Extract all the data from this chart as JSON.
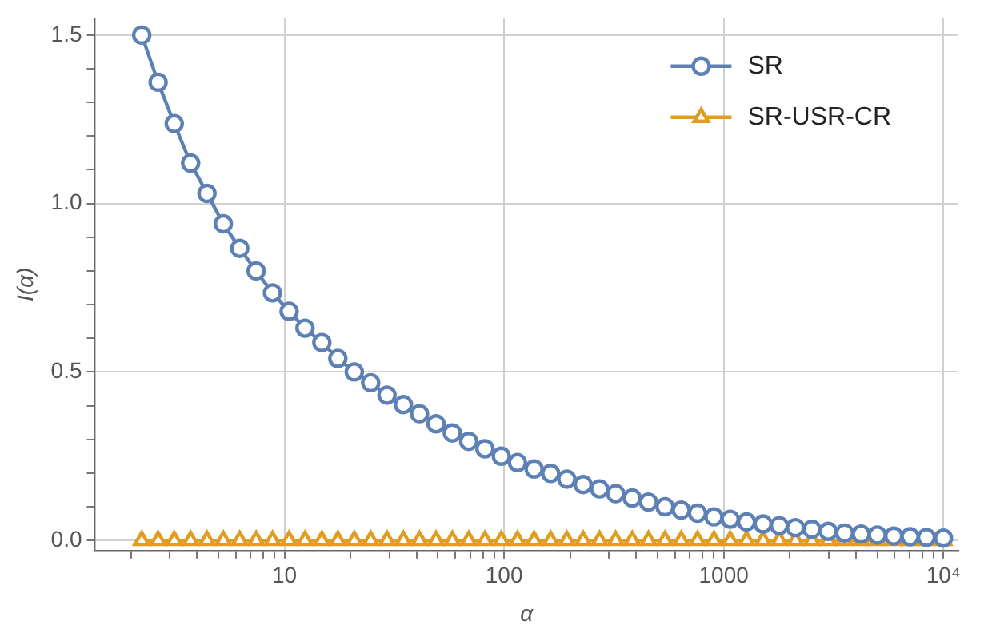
{
  "chart_data": {
    "type": "line",
    "xlabel": "α",
    "ylabel": "I(α)",
    "log": "x",
    "x": [
      2.24,
      2.66,
      3.15,
      3.74,
      4.44,
      5.27,
      6.26,
      7.43,
      8.82,
      10.5,
      12.4,
      14.8,
      17.5,
      20.8,
      24.7,
      29.3,
      34.8,
      41.2,
      49.0,
      58.1,
      69.0,
      81.8,
      97.1,
      115,
      137,
      163,
      193,
      229,
      272,
      322,
      383,
      454,
      540,
      640,
      759,
      902,
      1070,
      1270,
      1510,
      1790,
      2120,
      2520,
      2990,
      3550,
      4220,
      5000,
      5940,
      7050,
      8370,
      10000
    ],
    "series": [
      {
        "name": "SR",
        "color": "#5e81b5",
        "marker": "circle",
        "values": [
          1.5,
          1.36,
          1.237,
          1.12,
          1.03,
          0.94,
          0.867,
          0.8,
          0.735,
          0.68,
          0.63,
          0.587,
          0.54,
          0.5,
          0.468,
          0.431,
          0.403,
          0.376,
          0.346,
          0.319,
          0.294,
          0.272,
          0.25,
          0.231,
          0.212,
          0.199,
          0.182,
          0.166,
          0.153,
          0.139,
          0.126,
          0.114,
          0.1,
          0.09,
          0.081,
          0.07,
          0.063,
          0.055,
          0.049,
          0.044,
          0.038,
          0.033,
          0.027,
          0.022,
          0.019,
          0.016,
          0.013,
          0.011,
          0.009,
          0.007
        ]
      },
      {
        "name": "SR-USR-CR",
        "color": "#e19c24",
        "marker": "triangle",
        "values": [
          0,
          0,
          0,
          0,
          0,
          0,
          0,
          0,
          0,
          0,
          0,
          0,
          0,
          0,
          0,
          0,
          0,
          0,
          0,
          0,
          0,
          0,
          0,
          0,
          0,
          0,
          0,
          0,
          0,
          0,
          0,
          0,
          0,
          0,
          0,
          0,
          0,
          0,
          0,
          0,
          0,
          0,
          0,
          0,
          0,
          0,
          0,
          0,
          0,
          0
        ]
      }
    ],
    "xlim": [
      1.37,
      11700
    ],
    "xticks": [
      {
        "value": 2,
        "label": null
      },
      {
        "value": 3,
        "label": null
      },
      {
        "value": 4,
        "label": null
      },
      {
        "value": 5,
        "label": null
      },
      {
        "value": 6,
        "label": null
      },
      {
        "value": 7,
        "label": null
      },
      {
        "value": 8,
        "label": null
      },
      {
        "value": 9,
        "label": null
      },
      10,
      {
        "value": 20,
        "label": null
      },
      {
        "value": 30,
        "label": null
      },
      {
        "value": 40,
        "label": null
      },
      {
        "value": 50,
        "label": null
      },
      {
        "value": 60,
        "label": null
      },
      {
        "value": 70,
        "label": null
      },
      {
        "value": 80,
        "label": null
      },
      {
        "value": 90,
        "label": null
      },
      100,
      {
        "value": 200,
        "label": null
      },
      {
        "value": 300,
        "label": null
      },
      {
        "value": 400,
        "label": null
      },
      {
        "value": 500,
        "label": null
      },
      {
        "value": 600,
        "label": null
      },
      {
        "value": 700,
        "label": null
      },
      {
        "value": 800,
        "label": null
      },
      {
        "value": 900,
        "label": null
      },
      1000,
      {
        "value": 2000,
        "label": null
      },
      {
        "value": 3000,
        "label": null
      },
      {
        "value": 4000,
        "label": null
      },
      {
        "value": 5000,
        "label": null
      },
      {
        "value": 6000,
        "label": null
      },
      {
        "value": 7000,
        "label": null
      },
      {
        "value": 8000,
        "label": null
      },
      {
        "value": 9000,
        "label": null
      },
      {
        "value": 10000,
        "label": "10⁴"
      }
    ],
    "ylim": [
      -0.03,
      1.55
    ],
    "yticks": [
      {
        "value": 0,
        "label": "0.0"
      },
      {
        "value": 0.1,
        "label": null
      },
      {
        "value": 0.2,
        "label": null
      },
      {
        "value": 0.3,
        "label": null
      },
      {
        "value": 0.4,
        "label": null
      },
      {
        "value": 0.5,
        "label": "0.5"
      },
      {
        "value": 0.6,
        "label": null
      },
      {
        "value": 0.7,
        "label": null
      },
      {
        "value": 0.8,
        "label": null
      },
      {
        "value": 0.9,
        "label": null
      },
      {
        "value": 1,
        "label": "1.0"
      },
      {
        "value": 1.1,
        "label": null
      },
      {
        "value": 1.2,
        "label": null
      },
      {
        "value": 1.3,
        "label": null
      },
      {
        "value": 1.4,
        "label": null
      },
      {
        "value": 1.5,
        "label": "1.5"
      }
    ],
    "grid": true,
    "legend": "top right",
    "line_style": "solid"
  }
}
